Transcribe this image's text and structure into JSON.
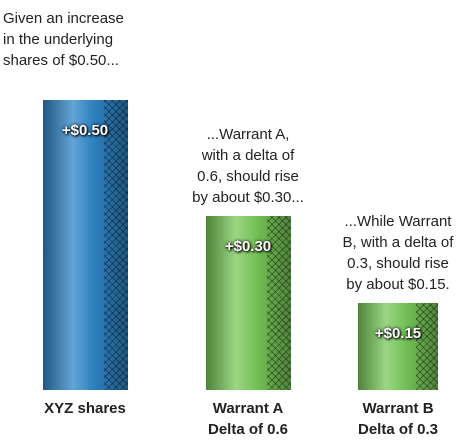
{
  "chart_data": {
    "type": "bar",
    "categories": [
      "XYZ shares",
      "Warrant A\nDelta of 0.6",
      "Warrant B\nDelta of 0.3"
    ],
    "values": [
      0.5,
      0.3,
      0.15
    ],
    "value_labels": [
      "+$0.50",
      "+$0.30",
      "+$0.15"
    ],
    "colors": [
      "#2f86c8",
      "#79c95a",
      "#79c95a"
    ],
    "annotations": [
      "Given an increase\nin the underlying\nshares of $0.50...",
      "...Warrant A,\nwith a delta of\n0.6, should rise\nby about $0.30...",
      "...While Warrant\nB, with a delta of\n0.3, should rise\nby about $0.15."
    ]
  }
}
